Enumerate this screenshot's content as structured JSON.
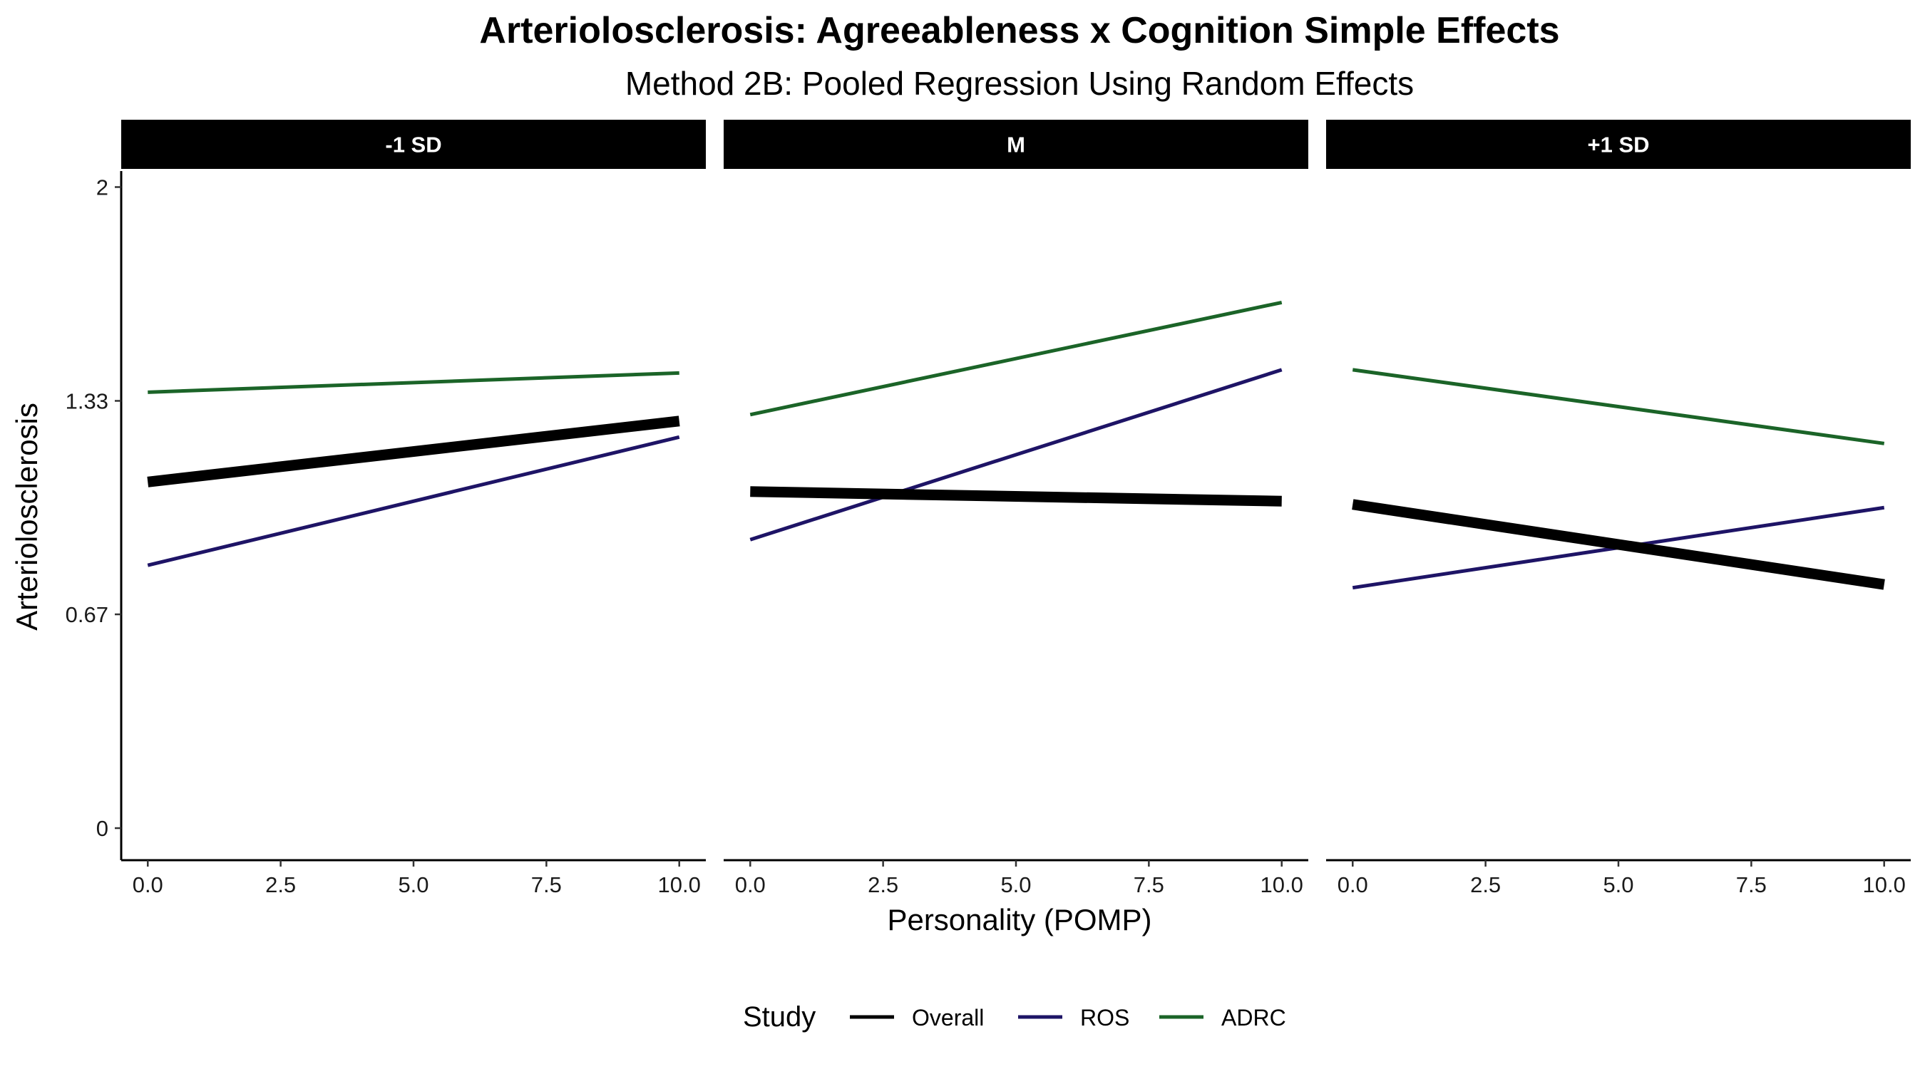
{
  "chart_data": {
    "type": "line",
    "title": "Arteriolosclerosis: Agreeableness x Cognition Simple Effects",
    "subtitle": "Method 2B: Pooled Regression Using Random Effects",
    "xlabel": "Personality (POMP)",
    "ylabel": "Arteriolosclerosis",
    "x_ticks": [
      "0.0",
      "2.5",
      "5.0",
      "7.5",
      "10.0"
    ],
    "x_tick_values": [
      0,
      2.5,
      5,
      7.5,
      10
    ],
    "y_ticks": [
      "0",
      "0.67",
      "1.33",
      "2"
    ],
    "y_tick_values": [
      0,
      0.667,
      1.333,
      2
    ],
    "xlim": [
      -0.5,
      10.5
    ],
    "ylim": [
      -0.1,
      2.05
    ],
    "grid": false,
    "legend": {
      "title": "Study",
      "position": "bottom",
      "entries": [
        {
          "name": "Overall",
          "color": "#000000"
        },
        {
          "name": "ROS",
          "color": "#1e1466"
        },
        {
          "name": "ADRC",
          "color": "#1b6428"
        }
      ]
    },
    "facets": [
      {
        "label": "-1 SD",
        "series": [
          {
            "name": "Overall",
            "x": [
              0,
              10
            ],
            "y": [
              1.08,
              1.27
            ]
          },
          {
            "name": "ROS",
            "x": [
              0,
              10
            ],
            "y": [
              0.82,
              1.22
            ]
          },
          {
            "name": "ADRC",
            "x": [
              0,
              10
            ],
            "y": [
              1.36,
              1.42
            ]
          }
        ]
      },
      {
        "label": "M",
        "series": [
          {
            "name": "Overall",
            "x": [
              0,
              10
            ],
            "y": [
              1.05,
              1.02
            ]
          },
          {
            "name": "ROS",
            "x": [
              0,
              10
            ],
            "y": [
              0.9,
              1.43
            ]
          },
          {
            "name": "ADRC",
            "x": [
              0,
              10
            ],
            "y": [
              1.29,
              1.64
            ]
          }
        ]
      },
      {
        "label": "+1 SD",
        "series": [
          {
            "name": "Overall",
            "x": [
              0,
              10
            ],
            "y": [
              1.01,
              0.76
            ]
          },
          {
            "name": "ROS",
            "x": [
              0,
              10
            ],
            "y": [
              0.75,
              1.0
            ]
          },
          {
            "name": "ADRC",
            "x": [
              0,
              10
            ],
            "y": [
              1.43,
              1.2
            ]
          }
        ]
      }
    ]
  }
}
